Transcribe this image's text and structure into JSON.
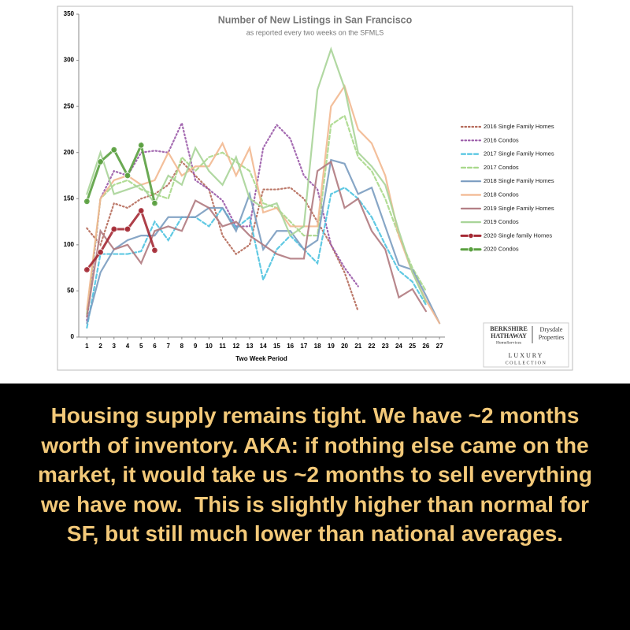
{
  "chart_data": {
    "type": "line",
    "title": "Number of New Listings in San Francisco",
    "subtitle": "as reported every two weeks on the SFMLS",
    "x_label": "Two Week Period",
    "x": [
      1,
      2,
      3,
      4,
      5,
      6,
      7,
      8,
      9,
      10,
      11,
      12,
      13,
      14,
      15,
      16,
      17,
      18,
      19,
      20,
      21,
      22,
      23,
      24,
      25,
      26,
      27
    ],
    "xlim": [
      0.4,
      27.4
    ],
    "xticks": [
      1,
      2,
      3,
      4,
      5,
      6,
      7,
      8,
      9,
      10,
      11,
      12,
      13,
      14,
      15,
      16,
      17,
      18,
      19,
      20,
      21,
      22,
      23,
      24,
      25,
      26,
      27
    ],
    "ylim": [
      0,
      350
    ],
    "yticks": [
      0,
      50,
      100,
      150,
      200,
      250,
      300,
      350
    ],
    "series": [
      {
        "name": "2016 Single Family Homes",
        "color": "#b56a5a",
        "dash": "dotted",
        "markers": false,
        "values": [
          118,
          100,
          145,
          140,
          150,
          155,
          165,
          190,
          175,
          160,
          110,
          90,
          100,
          160,
          160,
          162,
          150,
          125,
          100,
          70,
          28,
          null,
          null,
          null,
          null,
          null,
          null
        ]
      },
      {
        "name": "2016 Condos",
        "color": "#9a5aa8",
        "dash": "dotted",
        "markers": false,
        "values": [
          18,
          150,
          180,
          175,
          200,
          202,
          200,
          232,
          170,
          160,
          148,
          120,
          120,
          205,
          230,
          215,
          175,
          160,
          100,
          75,
          55,
          null,
          null,
          null,
          null,
          null,
          null
        ]
      },
      {
        "name": "2017 Single Family Homes",
        "color": "#4fc3e0",
        "dash": "dashed",
        "markers": false,
        "values": [
          10,
          90,
          90,
          90,
          93,
          125,
          105,
          130,
          130,
          120,
          140,
          118,
          130,
          62,
          95,
          110,
          95,
          80,
          155,
          162,
          150,
          130,
          100,
          72,
          60,
          35,
          null
        ]
      },
      {
        "name": "2017 Condos",
        "color": "#a8d88a",
        "dash": "dashed",
        "markers": false,
        "values": [
          25,
          150,
          165,
          170,
          160,
          155,
          150,
          195,
          180,
          195,
          200,
          190,
          180,
          145,
          140,
          125,
          110,
          110,
          230,
          240,
          195,
          180,
          150,
          110,
          75,
          50,
          null
        ]
      },
      {
        "name": "2018 Single Family Homes",
        "color": "#7a9cc0",
        "dash": "solid",
        "markers": false,
        "values": [
          15,
          70,
          95,
          105,
          110,
          110,
          130,
          130,
          130,
          140,
          140,
          115,
          155,
          95,
          115,
          115,
          95,
          105,
          192,
          188,
          155,
          162,
          120,
          78,
          73,
          45,
          15
        ]
      },
      {
        "name": "2018 Condos",
        "color": "#f2b890",
        "dash": "solid",
        "markers": false,
        "values": [
          30,
          150,
          170,
          175,
          165,
          170,
          200,
          175,
          185,
          185,
          210,
          175,
          205,
          135,
          140,
          120,
          120,
          120,
          250,
          272,
          225,
          210,
          175,
          110,
          70,
          40,
          15
        ]
      },
      {
        "name": "2019 Single Family Homes",
        "color": "#b07a80",
        "dash": "solid",
        "markers": false,
        "values": [
          22,
          115,
          95,
          100,
          80,
          115,
          120,
          115,
          148,
          140,
          120,
          125,
          110,
          100,
          90,
          85,
          85,
          180,
          190,
          140,
          150,
          115,
          95,
          43,
          52,
          28,
          null
        ]
      },
      {
        "name": "2019 Condos",
        "color": "#a8d498",
        "dash": "solid",
        "markers": false,
        "values": [
          155,
          200,
          155,
          160,
          165,
          145,
          175,
          165,
          205,
          180,
          165,
          195,
          150,
          140,
          145,
          110,
          120,
          268,
          312,
          270,
          200,
          185,
          165,
          115,
          70,
          38,
          null
        ]
      },
      {
        "name": "2020 Single family Homes",
        "color": "#a52a35",
        "dash": "solid",
        "markers": true,
        "values": [
          73,
          92,
          117,
          117,
          137,
          94,
          null,
          null,
          null,
          null,
          null,
          null,
          null,
          null,
          null,
          null,
          null,
          null,
          null,
          null,
          null,
          null,
          null,
          null,
          null,
          null,
          null
        ]
      },
      {
        "name": "2020 Condos",
        "color": "#5aa040",
        "dash": "solid",
        "markers": true,
        "values": [
          147,
          190,
          203,
          175,
          208,
          145,
          null,
          null,
          null,
          null,
          null,
          null,
          null,
          null,
          null,
          null,
          null,
          null,
          null,
          null,
          null,
          null,
          null,
          null,
          null,
          null,
          null
        ]
      }
    ]
  },
  "logo": {
    "line1": "BERKSHIRE",
    "line2": "HATHAWAY",
    "line3": "HomeServices",
    "line4": "Drysdale",
    "line5": "Properties",
    "line6": "LUXURY",
    "line7": "COLLECTION"
  },
  "caption": "Housing supply remains tight. We have ~2 months worth of inventory. AKA: if nothing else came on the market, it would take us ~2 months to sell everything we have now.  This is slightly higher than normal for SF, but still much lower than national averages."
}
